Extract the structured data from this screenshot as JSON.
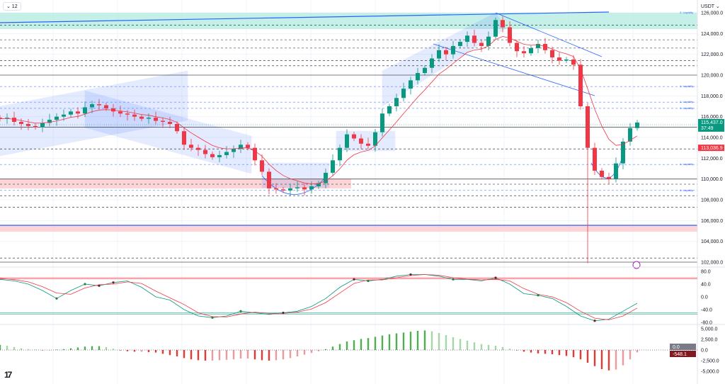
{
  "toolbar": {
    "interval_label": "⌄ 12",
    "currency": "USDT ⌄"
  },
  "price_axis": {
    "ticks": [
      "126,000.0",
      "124,000.0",
      "122,000.0",
      "120,000.0",
      "118,000.0",
      "116,000.0",
      "114,000.0",
      "112,000.0",
      "110,000.0",
      "108,000.0",
      "106,000.0",
      "104,000.0",
      "102,000.0"
    ],
    "current_price_label": "115,437.0",
    "countdown_label": "37:49",
    "ma_price_label": "113,036.9"
  },
  "oscillator_axis": {
    "ticks": [
      "80.0",
      "40.0",
      "0.0",
      "-40.0",
      "-80.0"
    ]
  },
  "macd_axis": {
    "ticks": [
      "5,000.0",
      "2,500.0",
      "0.0",
      "-2,500.0",
      "-5,000.0"
    ],
    "zero_label": "0.0",
    "current_label": "-548.1"
  },
  "liquidity_labels": {
    "top": "3. Liquidity",
    "level": "1. Liquidity"
  },
  "colors": {
    "up": "#089981",
    "down": "#f23645",
    "drawing": "#2962ff",
    "current_price_bg": "#089981",
    "ma_bg": "#f23645",
    "macd_bg": "#801922"
  },
  "chart_data": [
    {
      "type": "candlestick",
      "symbol_quote": "USDT",
      "ylim": [
        101800,
        126400
      ],
      "closes": [
        115800,
        115900,
        115500,
        115300,
        115100,
        115000,
        115400,
        115700,
        116000,
        116200,
        116500,
        116300,
        116900,
        117200,
        117100,
        116800,
        116500,
        116300,
        116200,
        116000,
        115800,
        115900,
        115600,
        115500,
        115300,
        114600,
        113300,
        113000,
        112800,
        112400,
        112100,
        112300,
        112600,
        112900,
        113300,
        113000,
        111800,
        110700,
        109100,
        109000,
        108900,
        109100,
        109200,
        109000,
        109300,
        109600,
        110600,
        111800,
        113000,
        114300,
        113900,
        113400,
        113200,
        114500,
        116300,
        117000,
        117800,
        118700,
        119500,
        120200,
        120700,
        121600,
        122400,
        122000,
        122800,
        123200,
        123800,
        123100,
        122800,
        123700,
        125300,
        124600,
        123100,
        122300,
        122100,
        122600,
        123000,
        122400,
        121700,
        121400,
        121500,
        121000,
        117000,
        113000,
        110800,
        110200,
        110000,
        111500,
        113600,
        114900,
        115437
      ],
      "notable_wick_low": {
        "index": 83,
        "value": 101900
      },
      "last_price": 115437.0,
      "ma_value": 113036.9
    },
    {
      "type": "line",
      "ylim": [
        -90,
        90
      ],
      "levels": [
        60,
        56,
        -50,
        -54
      ],
      "series": [
        {
          "color": "#089981",
          "values": [
            55,
            50,
            40,
            20,
            -5,
            20,
            40,
            35,
            45,
            50,
            30,
            0,
            -10,
            -40,
            -60,
            -65,
            -60,
            -45,
            -50,
            -55,
            -50,
            -45,
            -30,
            -5,
            30,
            55,
            50,
            55,
            65,
            70,
            70,
            65,
            55,
            55,
            50,
            60,
            40,
            10,
            5,
            -5,
            -30,
            -60,
            -75,
            -70,
            -45,
            -20
          ]
        },
        {
          "color": "#f23645",
          "values": [
            58,
            54,
            47,
            32,
            12,
            8,
            28,
            38,
            40,
            47,
            42,
            18,
            -3,
            -24,
            -50,
            -62,
            -63,
            -54,
            -48,
            -52,
            -52,
            -48,
            -38,
            -18,
            12,
            42,
            53,
            53,
            60,
            67,
            70,
            68,
            60,
            56,
            53,
            55,
            50,
            26,
            8,
            0,
            -18,
            -45,
            -67,
            -72,
            -60,
            -35
          ]
        }
      ]
    },
    {
      "type": "bar",
      "ylim": [
        -5500,
        5500
      ],
      "values": [
        1200,
        1000,
        700,
        400,
        200,
        100,
        -100,
        -100,
        100,
        200,
        400,
        600,
        800,
        900,
        900,
        700,
        300,
        -100,
        -300,
        -400,
        -400,
        -500,
        -600,
        -900,
        -1200,
        -1500,
        -1900,
        -2200,
        -2400,
        -2500,
        -2500,
        -2400,
        -2300,
        -2200,
        -2000,
        -2000,
        -2200,
        -2400,
        -2500,
        -2400,
        -2200,
        -1900,
        -1500,
        -1100,
        -700,
        -300,
        200,
        800,
        1400,
        2000,
        2300,
        2600,
        2800,
        3100,
        3400,
        3700,
        3900,
        4100,
        4300,
        4500,
        4600,
        4400,
        4000,
        3500,
        3000,
        2600,
        2200,
        1800,
        1400,
        1200,
        1000,
        700,
        300,
        -100,
        -400,
        -600,
        -800,
        -900,
        -1000,
        -1200,
        -1400,
        -1700,
        -2200,
        -3000,
        -3800,
        -4500,
        -4800,
        -4600,
        -3600,
        -2200,
        -548.1
      ]
    }
  ]
}
